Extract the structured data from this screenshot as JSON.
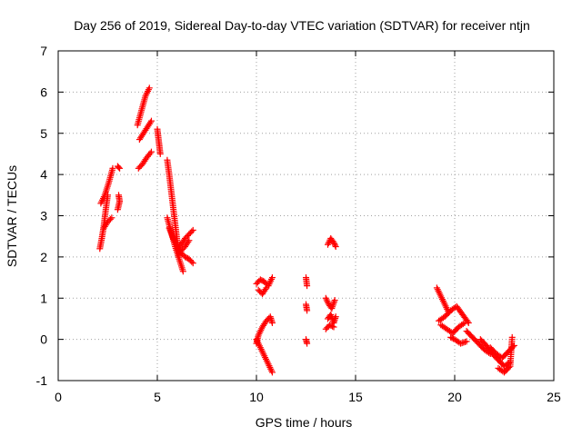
{
  "chart_data": {
    "type": "scatter",
    "title": "Day 256 of 2019, Sidereal Day-to-day VTEC variation (SDTVAR) for receiver ntjn",
    "xlabel": "GPS time / hours",
    "ylabel": "SDTVAR / TECUs",
    "xlim": [
      0,
      25
    ],
    "ylim": [
      -1,
      7
    ],
    "x_ticks": [
      0,
      5,
      10,
      15,
      20,
      25
    ],
    "y_ticks": [
      -1,
      0,
      1,
      2,
      3,
      4,
      5,
      6,
      7
    ],
    "grid": true,
    "marker": "+",
    "color": "#ff0000",
    "segments": [
      {
        "x": [
          2.1,
          2.2,
          2.3,
          2.4,
          2.5
        ],
        "y": [
          2.2,
          2.45,
          2.75,
          3.15,
          3.5
        ]
      },
      {
        "x": [
          2.15,
          2.35,
          2.55,
          2.75
        ],
        "y": [
          3.3,
          3.5,
          3.8,
          4.15
        ]
      },
      {
        "x": [
          2.3,
          2.5,
          2.7
        ],
        "y": [
          2.7,
          2.85,
          2.95
        ]
      },
      {
        "x": [
          3.0,
          3.1
        ],
        "y": [
          4.2,
          4.15
        ]
      },
      {
        "x": [
          3.0,
          3.1,
          3.05
        ],
        "y": [
          3.15,
          3.35,
          3.5
        ]
      },
      {
        "x": [
          4.0,
          4.2,
          4.4,
          4.6
        ],
        "y": [
          5.2,
          5.55,
          5.9,
          6.1
        ]
      },
      {
        "x": [
          4.1,
          4.3,
          4.5,
          4.7
        ],
        "y": [
          4.85,
          5.0,
          5.15,
          5.3
        ]
      },
      {
        "x": [
          4.05,
          4.25,
          4.45,
          4.7
        ],
        "y": [
          4.15,
          4.25,
          4.4,
          4.55
        ]
      },
      {
        "x": [
          5.0,
          5.05,
          5.1,
          5.15
        ],
        "y": [
          5.1,
          4.9,
          4.7,
          4.5
        ]
      },
      {
        "x": [
          5.5,
          5.6,
          5.7,
          5.8,
          5.9,
          6.0,
          6.1
        ],
        "y": [
          4.35,
          4.0,
          3.6,
          3.2,
          2.8,
          2.4,
          2.0
        ]
      },
      {
        "x": [
          5.5,
          5.7,
          5.9,
          6.1,
          6.3
        ],
        "y": [
          2.95,
          2.6,
          2.25,
          1.95,
          1.65
        ]
      },
      {
        "x": [
          5.6,
          5.8,
          6.0,
          6.2,
          6.4,
          6.6,
          6.8
        ],
        "y": [
          2.7,
          2.45,
          2.25,
          2.1,
          2.0,
          1.95,
          1.85
        ]
      },
      {
        "x": [
          6.0,
          6.2,
          6.4,
          6.6,
          6.8
        ],
        "y": [
          2.2,
          2.3,
          2.45,
          2.55,
          2.65
        ]
      },
      {
        "x": [
          6.2,
          6.4,
          6.6
        ],
        "y": [
          2.15,
          2.25,
          2.4
        ]
      },
      {
        "x": [
          10.0,
          10.2,
          10.4,
          10.6,
          10.8
        ],
        "y": [
          1.35,
          1.45,
          1.4,
          1.3,
          1.5
        ]
      },
      {
        "x": [
          10.1,
          10.3,
          10.5
        ],
        "y": [
          1.2,
          1.1,
          1.25
        ]
      },
      {
        "x": [
          10.0,
          10.1,
          10.3,
          10.5,
          10.7,
          10.8
        ],
        "y": [
          -0.1,
          0.1,
          0.3,
          0.45,
          0.55,
          0.4
        ]
      },
      {
        "x": [
          10.0,
          10.2,
          10.4,
          10.6,
          10.8
        ],
        "y": [
          0.0,
          -0.2,
          -0.4,
          -0.6,
          -0.8
        ]
      },
      {
        "x": [
          12.5,
          12.55
        ],
        "y": [
          1.5,
          1.3
        ]
      },
      {
        "x": [
          12.5,
          12.55
        ],
        "y": [
          0.85,
          0.7
        ]
      },
      {
        "x": [
          12.5,
          12.55
        ],
        "y": [
          0.0,
          -0.1
        ]
      },
      {
        "x": [
          13.6,
          13.75,
          13.9,
          14.0
        ],
        "y": [
          2.3,
          2.45,
          2.35,
          2.25
        ]
      },
      {
        "x": [
          13.5,
          13.65,
          13.8,
          13.95
        ],
        "y": [
          1.0,
          0.85,
          0.75,
          0.95
        ]
      },
      {
        "x": [
          13.6,
          13.75,
          13.9,
          14.0
        ],
        "y": [
          0.5,
          0.6,
          0.4,
          0.55
        ]
      },
      {
        "x": [
          13.5,
          13.7,
          13.9
        ],
        "y": [
          0.25,
          0.35,
          0.3
        ]
      },
      {
        "x": [
          19.1,
          19.3,
          19.5,
          19.7
        ],
        "y": [
          1.25,
          1.05,
          0.85,
          0.65
        ]
      },
      {
        "x": [
          19.2,
          19.5,
          19.8,
          20.1,
          20.4,
          20.7
        ],
        "y": [
          0.45,
          0.55,
          0.7,
          0.8,
          0.6,
          0.4
        ]
      },
      {
        "x": [
          19.3,
          19.6,
          19.9,
          20.2,
          20.5
        ],
        "y": [
          0.35,
          0.25,
          0.15,
          0.3,
          0.4
        ]
      },
      {
        "x": [
          19.8,
          20.0,
          20.3,
          20.6
        ],
        "y": [
          0.05,
          0.0,
          -0.1,
          -0.05
        ]
      },
      {
        "x": [
          20.6,
          20.9,
          21.2,
          21.5,
          21.8
        ],
        "y": [
          0.2,
          0.05,
          -0.1,
          -0.25,
          -0.35
        ]
      },
      {
        "x": [
          21.3,
          21.6,
          21.9,
          22.2,
          22.5,
          22.8
        ],
        "y": [
          0.0,
          -0.15,
          -0.35,
          -0.5,
          -0.65,
          -0.55
        ]
      },
      {
        "x": [
          21.8,
          22.1,
          22.4,
          22.7,
          23.0
        ],
        "y": [
          -0.2,
          -0.35,
          -0.45,
          -0.3,
          -0.15
        ]
      },
      {
        "x": [
          22.2,
          22.5,
          22.8,
          22.9
        ],
        "y": [
          -0.7,
          -0.8,
          -0.65,
          0.05
        ]
      }
    ]
  }
}
